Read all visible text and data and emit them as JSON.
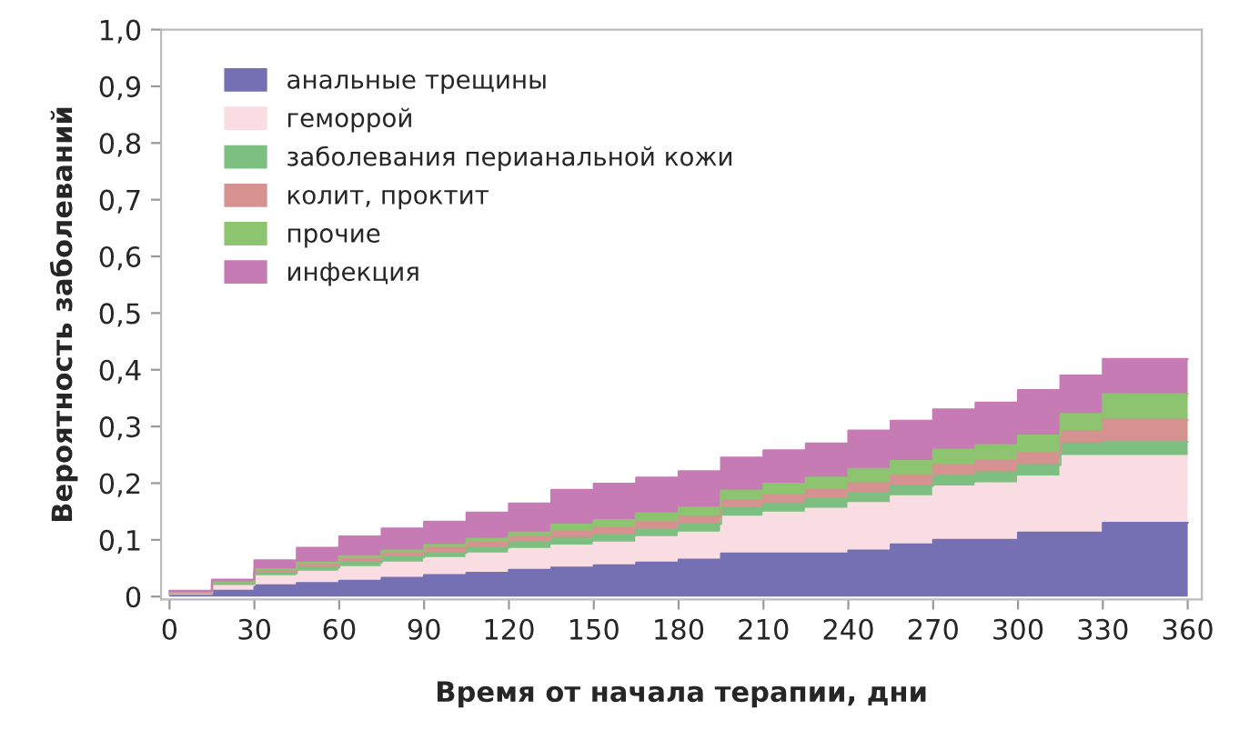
{
  "chart_data": {
    "type": "area",
    "stacked": true,
    "xlabel": "Время от начала терапии, дни",
    "ylabel": "Вероятность заболеваний",
    "x": [
      0,
      15,
      15,
      30,
      30,
      45,
      45,
      60,
      60,
      75,
      75,
      90,
      90,
      105,
      105,
      120,
      120,
      135,
      135,
      150,
      150,
      165,
      165,
      180,
      180,
      195,
      195,
      210,
      210,
      225,
      225,
      240,
      240,
      255,
      255,
      270,
      270,
      285,
      285,
      300,
      300,
      315,
      315,
      330,
      330,
      345,
      345,
      360
    ],
    "series": [
      {
        "name": "анальные трещины",
        "color": "#7570b3",
        "values": [
          0.003,
          0.003,
          0.01,
          0.01,
          0.02,
          0.02,
          0.024,
          0.024,
          0.028,
          0.028,
          0.033,
          0.033,
          0.038,
          0.038,
          0.042,
          0.042,
          0.047,
          0.047,
          0.051,
          0.051,
          0.055,
          0.055,
          0.06,
          0.06,
          0.065,
          0.065,
          0.076,
          0.076,
          0.076,
          0.076,
          0.076,
          0.076,
          0.081,
          0.081,
          0.092,
          0.092,
          0.1,
          0.1,
          0.1,
          0.1,
          0.113,
          0.113,
          0.113,
          0.113,
          0.13,
          0.13,
          0.13,
          0.13
        ]
      },
      {
        "name": "геморрой",
        "color": "#fadde3",
        "values": [
          0.002,
          0.002,
          0.01,
          0.01,
          0.016,
          0.016,
          0.02,
          0.02,
          0.024,
          0.024,
          0.027,
          0.027,
          0.03,
          0.03,
          0.034,
          0.034,
          0.037,
          0.037,
          0.039,
          0.039,
          0.04,
          0.04,
          0.045,
          0.045,
          0.048,
          0.048,
          0.065,
          0.065,
          0.072,
          0.072,
          0.079,
          0.079,
          0.084,
          0.084,
          0.085,
          0.085,
          0.094,
          0.094,
          0.1,
          0.1,
          0.099,
          0.099,
          0.135,
          0.135,
          0.118,
          0.118,
          0.118,
          0.118
        ]
      },
      {
        "name": "заболевания перианальной кожи",
        "color": "#7dbf80",
        "values": [
          0.001,
          0.001,
          0.002,
          0.002,
          0.005,
          0.005,
          0.007,
          0.007,
          0.008,
          0.008,
          0.009,
          0.009,
          0.009,
          0.009,
          0.01,
          0.01,
          0.011,
          0.011,
          0.013,
          0.013,
          0.014,
          0.014,
          0.014,
          0.014,
          0.015,
          0.015,
          0.015,
          0.015,
          0.016,
          0.016,
          0.017,
          0.017,
          0.018,
          0.018,
          0.018,
          0.018,
          0.019,
          0.019,
          0.019,
          0.019,
          0.02,
          0.02,
          0.022,
          0.022,
          0.025,
          0.025,
          0.025,
          0.025
        ]
      },
      {
        "name": "колит, проктит",
        "color": "#d59291",
        "values": [
          0.001,
          0.001,
          0.002,
          0.002,
          0.004,
          0.004,
          0.005,
          0.005,
          0.006,
          0.006,
          0.007,
          0.007,
          0.008,
          0.008,
          0.009,
          0.009,
          0.01,
          0.01,
          0.012,
          0.012,
          0.012,
          0.012,
          0.013,
          0.013,
          0.013,
          0.013,
          0.014,
          0.014,
          0.015,
          0.015,
          0.016,
          0.016,
          0.017,
          0.017,
          0.018,
          0.018,
          0.019,
          0.019,
          0.02,
          0.02,
          0.022,
          0.022,
          0.022,
          0.022,
          0.039,
          0.039,
          0.039,
          0.039
        ]
      },
      {
        "name": "прочие",
        "color": "#8cc46f",
        "values": [
          0.001,
          0.001,
          0.001,
          0.001,
          0.003,
          0.003,
          0.004,
          0.004,
          0.005,
          0.005,
          0.005,
          0.005,
          0.006,
          0.006,
          0.007,
          0.007,
          0.008,
          0.008,
          0.012,
          0.012,
          0.014,
          0.014,
          0.015,
          0.015,
          0.016,
          0.016,
          0.017,
          0.017,
          0.02,
          0.02,
          0.022,
          0.022,
          0.025,
          0.025,
          0.026,
          0.026,
          0.027,
          0.027,
          0.028,
          0.028,
          0.03,
          0.03,
          0.03,
          0.03,
          0.045,
          0.045,
          0.045,
          0.045
        ]
      },
      {
        "name": "инфекция",
        "color": "#c77bb5",
        "values": [
          0.002,
          0.002,
          0.005,
          0.005,
          0.016,
          0.016,
          0.026,
          0.026,
          0.035,
          0.035,
          0.039,
          0.039,
          0.041,
          0.041,
          0.046,
          0.046,
          0.051,
          0.051,
          0.061,
          0.061,
          0.064,
          0.064,
          0.063,
          0.063,
          0.064,
          0.064,
          0.058,
          0.058,
          0.059,
          0.059,
          0.06,
          0.06,
          0.068,
          0.068,
          0.071,
          0.071,
          0.071,
          0.071,
          0.075,
          0.075,
          0.08,
          0.08,
          0.068,
          0.068,
          0.062,
          0.062,
          0.062,
          0.062
        ]
      }
    ],
    "xlim": [
      -3,
      365
    ],
    "xticks": [
      0,
      30,
      60,
      90,
      120,
      150,
      180,
      210,
      240,
      270,
      300,
      330,
      360
    ],
    "ylim": [
      -0.005,
      1.0
    ],
    "yticks": [
      0,
      {
        "value": 0.1,
        "label": "0,1"
      },
      {
        "value": 0.2,
        "label": "0,2"
      },
      {
        "value": 0.3,
        "label": "0,3"
      },
      {
        "value": 0.4,
        "label": "0,4"
      },
      {
        "value": 0.5,
        "label": "0,5"
      },
      {
        "value": 0.6,
        "label": "0,6"
      },
      {
        "value": 0.7,
        "label": "0,7"
      },
      {
        "value": 0.8,
        "label": "0,8"
      },
      {
        "value": 0.9,
        "label": "0,9"
      },
      {
        "value": 1.0,
        "label": "1,0"
      }
    ],
    "grid": false,
    "legend": "top left"
  }
}
